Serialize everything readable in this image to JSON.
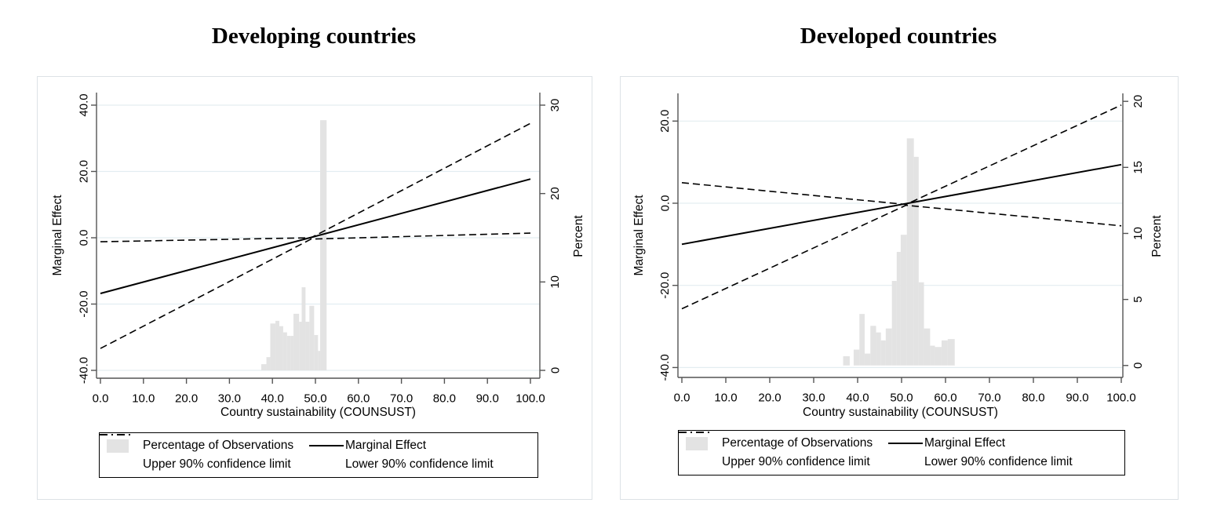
{
  "colors": {
    "line": "#000000",
    "axis_spine": "#545454",
    "gridline": "#e3edf1",
    "histogram_fill": "#e3e3e3",
    "panel_border": "#dde2e6",
    "text": "#000000"
  },
  "chart_data": [
    {
      "type": "line+histogram",
      "title": "Developing countries",
      "xlabel": "Country sustainability (COUNSUST)",
      "ylabel_left": "Marginal Effect",
      "ylabel_right": "Percent",
      "x_axis": {
        "ticks": [
          0,
          10,
          20,
          30,
          40,
          50,
          60,
          70,
          80,
          90,
          100
        ],
        "tick_labels": [
          "0.0",
          "10.0",
          "20.0",
          "30.0",
          "40.0",
          "50.0",
          "60.0",
          "70.0",
          "80.0",
          "90.0",
          "100.0"
        ]
      },
      "y_axis_left": {
        "ticks": [
          40,
          20,
          0,
          -20,
          -40
        ],
        "tick_labels": [
          "40.0",
          "20.0",
          "0.0",
          "-20.0",
          "-40.0"
        ],
        "domain": [
          -42.4,
          43.8
        ]
      },
      "y_axis_right_percent": {
        "ticks": [
          0,
          10,
          20,
          30
        ],
        "tick_labels": [
          "0",
          "10",
          "20",
          "30"
        ],
        "me_at_zero": -40,
        "me_per_unit": 2.6667
      },
      "grid_at_me": [
        40,
        20,
        0,
        -20,
        -40
      ],
      "series": {
        "marginal_effect": {
          "label": "Marginal Effect",
          "style": "solid",
          "points": [
            [
              0,
              -16.8
            ],
            [
              100,
              17.7
            ]
          ]
        },
        "upper_90": {
          "label": "Upper 90% confidence limit",
          "style": "dashed",
          "points": [
            [
              0,
              -1.2
            ],
            [
              49,
              0.0
            ],
            [
              100,
              34.5
            ]
          ]
        },
        "lower_90": {
          "label": "Lower 90% confidence limit",
          "style": "dashed",
          "points": [
            [
              0,
              -33.4
            ],
            [
              49,
              -0.4
            ],
            [
              100,
              1.4
            ]
          ]
        }
      },
      "histogram": {
        "label": "Percentage of Observations",
        "unit": "percent",
        "bars": [
          [
            37.4,
            1.2,
            0.7
          ],
          [
            38.6,
            0.9,
            1.5
          ],
          [
            39.5,
            1.2,
            5.3
          ],
          [
            40.7,
            0.9,
            5.6
          ],
          [
            41.6,
            0.9,
            5.0
          ],
          [
            42.5,
            0.9,
            4.3
          ],
          [
            43.4,
            0.9,
            3.9
          ],
          [
            44.3,
            0.6,
            3.9
          ],
          [
            44.9,
            1.3,
            6.4
          ],
          [
            46.2,
            0.6,
            5.5
          ],
          [
            46.8,
            0.9,
            9.4
          ],
          [
            47.7,
            0.9,
            5.5
          ],
          [
            48.6,
            1.1,
            7.3
          ],
          [
            49.7,
            0.9,
            4.0
          ],
          [
            50.6,
            0.5,
            2.2
          ],
          [
            51.1,
            1.5,
            28.3
          ]
        ]
      },
      "legend": {
        "items": [
          {
            "label": "Percentage of Observations",
            "glyph": "swatch"
          },
          {
            "label": "Marginal Effect",
            "glyph": "solid"
          },
          {
            "label": "Upper 90% confidence limit",
            "glyph": "dashed"
          },
          {
            "label": "Lower 90% confidence limit",
            "glyph": "dashed"
          }
        ]
      }
    },
    {
      "type": "line+histogram",
      "title": "Developed countries",
      "xlabel": "Country sustainability (COUNSUST)",
      "ylabel_left": "Marginal Effect",
      "ylabel_right": "Percent",
      "x_axis": {
        "ticks": [
          0,
          10,
          20,
          30,
          40,
          50,
          60,
          70,
          80,
          90,
          100
        ],
        "tick_labels": [
          "0.0",
          "10.0",
          "20.0",
          "30.0",
          "40.0",
          "50.0",
          "60.0",
          "70.0",
          "80.0",
          "90.0",
          "100.0"
        ]
      },
      "y_axis_left": {
        "ticks": [
          20,
          0,
          -20,
          -40
        ],
        "tick_labels": [
          "20.0",
          "0.0",
          "-20.0",
          "-40.0"
        ],
        "domain": [
          -42.4,
          26.7
        ]
      },
      "y_axis_right_percent": {
        "ticks": [
          0,
          5,
          10,
          15,
          20
        ],
        "tick_labels": [
          "0",
          "5",
          "10",
          "15",
          "20"
        ],
        "me_at_zero": -39.5,
        "me_per_unit": 3.215
      },
      "grid_at_me": [
        20,
        0,
        -20,
        -40
      ],
      "series": {
        "marginal_effect": {
          "label": "Marginal Effect",
          "style": "solid",
          "points": [
            [
              0,
              -10.0
            ],
            [
              100,
              9.4
            ]
          ]
        },
        "upper_90": {
          "label": "Upper 90% confidence limit",
          "style": "dashed",
          "points": [
            [
              0,
              5.0
            ],
            [
              51,
              -0.3
            ],
            [
              100,
              23.9
            ]
          ]
        },
        "lower_90": {
          "label": "Lower 90% confidence limit",
          "style": "dashed",
          "points": [
            [
              0,
              -25.7
            ],
            [
              51,
              -0.5
            ],
            [
              100,
              -5.5
            ]
          ]
        }
      },
      "histogram": {
        "label": "Percentage of Observations",
        "unit": "percent",
        "bars": [
          [
            36.7,
            1.5,
            0.7
          ],
          [
            39.1,
            1.3,
            1.2
          ],
          [
            40.4,
            1.2,
            3.9
          ],
          [
            41.6,
            1.3,
            0.9
          ],
          [
            42.9,
            1.3,
            3.0
          ],
          [
            44.2,
            1.1,
            2.5
          ],
          [
            45.3,
            1.1,
            1.9
          ],
          [
            46.4,
            1.4,
            2.8
          ],
          [
            47.8,
            1.1,
            6.4
          ],
          [
            48.9,
            0.9,
            8.6
          ],
          [
            49.8,
            1.4,
            9.9
          ],
          [
            51.2,
            1.6,
            17.2
          ],
          [
            52.8,
            1.1,
            15.8
          ],
          [
            53.9,
            1.2,
            6.3
          ],
          [
            55.1,
            1.4,
            2.8
          ],
          [
            56.5,
            1.1,
            1.5
          ],
          [
            57.6,
            1.5,
            1.4
          ],
          [
            59.1,
            1.4,
            1.9
          ],
          [
            60.5,
            1.6,
            2.0
          ]
        ]
      },
      "legend": {
        "items": [
          {
            "label": "Percentage of Observations",
            "glyph": "swatch"
          },
          {
            "label": "Marginal Effect",
            "glyph": "solid"
          },
          {
            "label": "Upper 90% confidence limit",
            "glyph": "dashed"
          },
          {
            "label": "Lower 90% confidence limit",
            "glyph": "dashed"
          }
        ]
      }
    }
  ]
}
